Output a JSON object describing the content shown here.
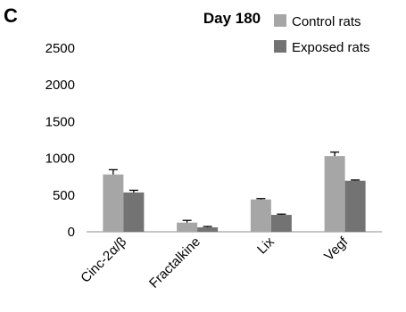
{
  "panel_label": "C",
  "chart_data": {
    "type": "bar",
    "title": "Day 180",
    "xlabel": "",
    "ylabel": "",
    "categories": [
      "Cinc-2α/β",
      "Fractalkine",
      "Lix",
      "Vegf"
    ],
    "ylim": [
      0,
      2500
    ],
    "yticks": [
      0,
      500,
      1000,
      1500,
      2000,
      2500
    ],
    "grid": false,
    "legend_position": "top-right",
    "error_bars": true,
    "series": [
      {
        "name": "Control rats",
        "color": "#a6a6a6",
        "values": [
          780,
          125,
          440,
          1030
        ],
        "errors": [
          65,
          30,
          12,
          55
        ]
      },
      {
        "name": "Exposed rats",
        "color": "#737373",
        "values": [
          535,
          60,
          230,
          695
        ],
        "errors": [
          30,
          12,
          10,
          10
        ]
      }
    ]
  }
}
